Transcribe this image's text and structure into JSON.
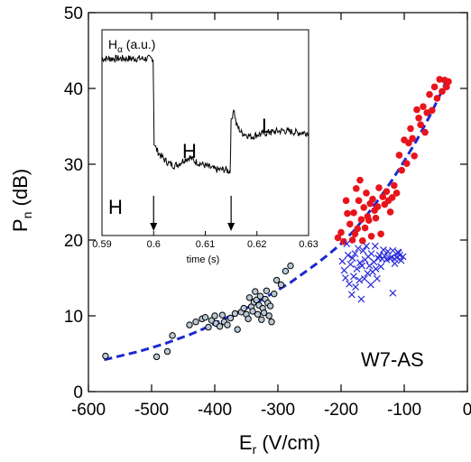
{
  "chart_data": [
    {
      "type": "scatter",
      "xlabel": "E",
      "xlabel_sub": "r",
      "xlabel_unit": " (V/cm)",
      "ylabel": "P",
      "ylabel_sub": "n",
      "ylabel_unit": " (dB)",
      "xlim": [
        -600,
        0
      ],
      "ylim": [
        0,
        50
      ],
      "xticks": [
        -600,
        -500,
        -400,
        -300,
        -200,
        -100,
        0
      ],
      "xtick_labels": [
        "-600",
        "-500",
        "-400",
        "-300",
        "-200",
        "-100",
        "0"
      ],
      "yticks": [
        0,
        10,
        20,
        30,
        40,
        50
      ],
      "ytick_labels": [
        "0",
        "10",
        "20",
        "30",
        "40",
        "50"
      ],
      "annotation": "W7-AS",
      "colors": {
        "red": "#e8141c",
        "blue": "#2a2adb",
        "grey_fill": "#b8c8d4",
        "dash": "#1a2ad0"
      },
      "series": [
        {
          "marker": "grey-circle",
          "points": [
            [
              -573,
              4.7
            ],
            [
              -492,
              4.6
            ],
            [
              -475,
              5.3
            ],
            [
              -467,
              7.4
            ],
            [
              -440,
              8.8
            ],
            [
              -430,
              9.2
            ],
            [
              -420,
              9.6
            ],
            [
              -415,
              9.8
            ],
            [
              -410,
              8.5
            ],
            [
              -405,
              9.4
            ],
            [
              -400,
              10.0
            ],
            [
              -398,
              9.0
            ],
            [
              -392,
              8.6
            ],
            [
              -388,
              10.1
            ],
            [
              -385,
              9.2
            ],
            [
              -380,
              8.8
            ],
            [
              -375,
              9.7
            ],
            [
              -368,
              10.3
            ],
            [
              -364,
              8.2
            ],
            [
              -358,
              10.5
            ],
            [
              -354,
              11.0
            ],
            [
              -350,
              10.2
            ],
            [
              -347,
              9.6
            ],
            [
              -345,
              12.4
            ],
            [
              -342,
              11.2
            ],
            [
              -340,
              10.6
            ],
            [
              -338,
              11.8
            ],
            [
              -336,
              13.2
            ],
            [
              -334,
              12.1
            ],
            [
              -332,
              10.2
            ],
            [
              -330,
              11.4
            ],
            [
              -328,
              12.6
            ],
            [
              -326,
              9.5
            ],
            [
              -324,
              11.0
            ],
            [
              -322,
              10.4
            ],
            [
              -320,
              12.2
            ],
            [
              -318,
              13.3
            ],
            [
              -316,
              11.7
            ],
            [
              -314,
              10.0
            ],
            [
              -312,
              11.3
            ],
            [
              -310,
              9.2
            ],
            [
              -306,
              12.9
            ],
            [
              -302,
              14.7
            ],
            [
              -295,
              14.1
            ],
            [
              -288,
              15.9
            ],
            [
              -280,
              16.6
            ]
          ]
        },
        {
          "marker": "red-circle",
          "points": [
            [
              -205,
              20.3
            ],
            [
              -200,
              21.0
            ],
            [
              -196,
              19.8
            ],
            [
              -192,
              25.2
            ],
            [
              -190,
              23.5
            ],
            [
              -186,
              22.1
            ],
            [
              -182,
              20.0
            ],
            [
              -180,
              23.6
            ],
            [
              -178,
              20.8
            ],
            [
              -176,
              26.8
            ],
            [
              -174,
              21.5
            ],
            [
              -172,
              25.2
            ],
            [
              -170,
              27.9
            ],
            [
              -168,
              22.7
            ],
            [
              -166,
              19.9
            ],
            [
              -164,
              24.3
            ],
            [
              -162,
              21.6
            ],
            [
              -160,
              26.2
            ],
            [
              -158,
              23.1
            ],
            [
              -156,
              22.6
            ],
            [
              -154,
              24.8
            ],
            [
              -152,
              20.5
            ],
            [
              -150,
              25.4
            ],
            [
              -147,
              23.9
            ],
            [
              -145,
              22.9
            ],
            [
              -142,
              24.4
            ],
            [
              -140,
              26.9
            ],
            [
              -137,
              20.8
            ],
            [
              -134,
              25.7
            ],
            [
              -131,
              24.7
            ],
            [
              -128,
              26.4
            ],
            [
              -125,
              25.2
            ],
            [
              -122,
              23.7
            ],
            [
              -119,
              25.6
            ],
            [
              -116,
              27.2
            ],
            [
              -112,
              26.2
            ],
            [
              -108,
              31.2
            ],
            [
              -104,
              29.2
            ],
            [
              -100,
              33.2
            ],
            [
              -96,
              30.1
            ],
            [
              -93,
              32.8
            ],
            [
              -90,
              34.7
            ],
            [
              -87,
              33.4
            ],
            [
              -84,
              31.1
            ],
            [
              -80,
              37.2
            ],
            [
              -77,
              36.1
            ],
            [
              -74,
              35.2
            ],
            [
              -70,
              37.6
            ],
            [
              -67,
              34.2
            ],
            [
              -64,
              36.8
            ],
            [
              -60,
              39.2
            ],
            [
              -56,
              37.1
            ],
            [
              -52,
              40.2
            ],
            [
              -48,
              38.7
            ],
            [
              -44,
              41.2
            ],
            [
              -40,
              39.6
            ],
            [
              -36,
              41.1
            ],
            [
              -33,
              40.2
            ],
            [
              -30,
              40.9
            ]
          ]
        },
        {
          "marker": "blue-x",
          "points": [
            [
              -198,
              17.2
            ],
            [
              -195,
              16.0
            ],
            [
              -193,
              15.0
            ],
            [
              -191,
              19.5
            ],
            [
              -189,
              18.0
            ],
            [
              -187,
              14.2
            ],
            [
              -185,
              16.8
            ],
            [
              -183,
              12.8
            ],
            [
              -182,
              17.6
            ],
            [
              -180,
              15.2
            ],
            [
              -178,
              18.2
            ],
            [
              -177,
              13.8
            ],
            [
              -175,
              16.2
            ],
            [
              -173,
              18.9
            ],
            [
              -171,
              14.7
            ],
            [
              -170,
              17.0
            ],
            [
              -168,
              12.2
            ],
            [
              -167,
              16.6
            ],
            [
              -165,
              18.6
            ],
            [
              -163,
              14.9
            ],
            [
              -162,
              17.4
            ],
            [
              -160,
              19.2
            ],
            [
              -158,
              15.6
            ],
            [
              -157,
              17.8
            ],
            [
              -155,
              16.6
            ],
            [
              -153,
              14.1
            ],
            [
              -152,
              18.2
            ],
            [
              -150,
              15.8
            ],
            [
              -148,
              17.1
            ],
            [
              -146,
              19.2
            ],
            [
              -145,
              16.2
            ],
            [
              -143,
              14.9
            ],
            [
              -141,
              17.6
            ],
            [
              -139,
              18.0
            ],
            [
              -137,
              16.5
            ],
            [
              -135,
              17.5
            ],
            [
              -133,
              18.7
            ],
            [
              -131,
              17.9
            ],
            [
              -128,
              17.4
            ],
            [
              -126,
              18.5
            ],
            [
              -123,
              17.6
            ],
            [
              -120,
              17.7
            ],
            [
              -118,
              18.6
            ],
            [
              -115,
              17.5
            ],
            [
              -112,
              17.7
            ],
            [
              -110,
              18.4
            ],
            [
              -107,
              18.0
            ],
            [
              -105,
              17.3
            ],
            [
              -102,
              17.8
            ],
            [
              -118,
              13.0
            ],
            [
              -109,
              18.3
            ],
            [
              -115,
              16.9
            ]
          ]
        }
      ],
      "fit_curve": {
        "style": "dashed",
        "x": [
          -575,
          -560,
          -540,
          -520,
          -500,
          -480,
          -460,
          -440,
          -420,
          -400,
          -380,
          -360,
          -340,
          -320,
          -300,
          -280,
          -260,
          -240,
          -220,
          -200,
          -180,
          -160,
          -140,
          -120,
          -100,
          -80,
          -60,
          -40,
          -30
        ],
        "y": [
          4.2,
          4.5,
          4.9,
          5.3,
          5.8,
          6.3,
          6.9,
          7.5,
          8.2,
          9.0,
          9.8,
          10.6,
          11.4,
          12.4,
          13.4,
          14.4,
          15.6,
          16.8,
          18.1,
          19.5,
          21.2,
          23.2,
          25.4,
          27.8,
          30.4,
          33.2,
          36.3,
          39.7,
          41.7
        ]
      }
    },
    {
      "type": "line",
      "title": "H",
      "title_sub": "α",
      "title_unit": " (a.u.)",
      "xlabel": "time (s)",
      "xlim": [
        0.59,
        0.63
      ],
      "ylim": [
        0,
        1
      ],
      "xticks": [
        0.59,
        0.6,
        0.61,
        0.62,
        0.63
      ],
      "xtick_labels": [
        "0.59",
        "0.6",
        "0.61",
        "0.62",
        "0.63"
      ],
      "annotations": [
        "H",
        "H",
        "L"
      ],
      "arrows_at": [
        0.6,
        0.615
      ],
      "series": [
        {
          "x": [
            0.59,
            0.5995,
            0.5999,
            0.6001,
            0.6005,
            0.601,
            0.602,
            0.603,
            0.604,
            0.605,
            0.606,
            0.607,
            0.608,
            0.609,
            0.61,
            0.611,
            0.612,
            0.613,
            0.614,
            0.6148,
            0.615,
            0.6155,
            0.616,
            0.617,
            0.618,
            0.619,
            0.62,
            0.622,
            0.625,
            0.628,
            0.63
          ],
          "y": [
            0.86,
            0.86,
            0.86,
            0.45,
            0.42,
            0.4,
            0.37,
            0.35,
            0.34,
            0.35,
            0.37,
            0.38,
            0.36,
            0.35,
            0.34,
            0.33,
            0.32,
            0.32,
            0.32,
            0.31,
            0.55,
            0.62,
            0.54,
            0.5,
            0.49,
            0.48,
            0.49,
            0.5,
            0.51,
            0.5,
            0.5
          ]
        }
      ]
    }
  ]
}
